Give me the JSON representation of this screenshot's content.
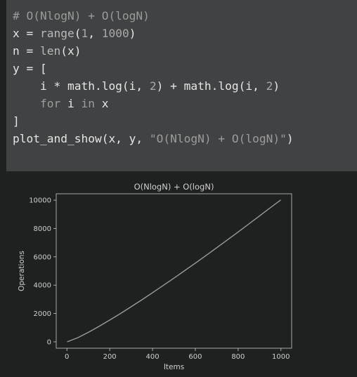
{
  "code_cell": {
    "lines": [
      [
        {
          "t": "comment",
          "v": "# O(NlogN) + O(logN)"
        }
      ],
      [
        {
          "t": "plain",
          "v": "x = "
        },
        {
          "t": "builtin",
          "v": "range"
        },
        {
          "t": "plain",
          "v": "("
        },
        {
          "t": "num",
          "v": "1"
        },
        {
          "t": "plain",
          "v": ", "
        },
        {
          "t": "num",
          "v": "1000"
        },
        {
          "t": "plain",
          "v": ")"
        }
      ],
      [
        {
          "t": "plain",
          "v": "n = "
        },
        {
          "t": "builtin",
          "v": "len"
        },
        {
          "t": "plain",
          "v": "(x)"
        }
      ],
      [
        {
          "t": "plain",
          "v": "y = ["
        }
      ],
      [
        {
          "t": "plain",
          "v": "    i * math.log(i, "
        },
        {
          "t": "num",
          "v": "2"
        },
        {
          "t": "plain",
          "v": ") + math.log(i, "
        },
        {
          "t": "num",
          "v": "2"
        },
        {
          "t": "plain",
          "v": ")"
        }
      ],
      [
        {
          "t": "plain",
          "v": "    "
        },
        {
          "t": "kw",
          "v": "for"
        },
        {
          "t": "plain",
          "v": " i "
        },
        {
          "t": "kw",
          "v": "in"
        },
        {
          "t": "plain",
          "v": " x"
        }
      ],
      [
        {
          "t": "plain",
          "v": "]"
        }
      ],
      [
        {
          "t": "plain",
          "v": "plot_and_show(x, y, "
        },
        {
          "t": "str",
          "v": "\"O(NlogN) + O(logN)\""
        },
        {
          "t": "plain",
          "v": ")"
        }
      ]
    ]
  },
  "chart_data": {
    "type": "line",
    "title": "O(NlogN) + O(logN)",
    "xlabel": "Items",
    "ylabel": "Operations",
    "xlim": [
      -50,
      1050
    ],
    "ylim": [
      -450,
      10450
    ],
    "xticks": [
      "0",
      "200",
      "400",
      "600",
      "800",
      "1000"
    ],
    "xtick_values": [
      0,
      200,
      400,
      600,
      800,
      1000
    ],
    "yticks": [
      "0",
      "2000",
      "4000",
      "6000",
      "8000",
      "10000"
    ],
    "ytick_values": [
      0,
      2000,
      4000,
      6000,
      8000,
      10000
    ],
    "grid": false,
    "series": [
      {
        "x": [
          1,
          50,
          100,
          150,
          200,
          250,
          300,
          350,
          400,
          450,
          500,
          550,
          600,
          650,
          700,
          750,
          800,
          850,
          900,
          950,
          999
        ],
        "y": [
          0,
          288,
          671,
          1092,
          1537,
          2000,
          2477,
          2966,
          3467,
          3977,
          4496,
          5023,
          5557,
          6097,
          6644,
          7197,
          7755,
          8318,
          8886,
          9459,
          10016
        ]
      }
    ],
    "colors": {
      "line": "#9a9a9a",
      "axes": "#c8c8c8",
      "background": "#1f2120"
    }
  }
}
